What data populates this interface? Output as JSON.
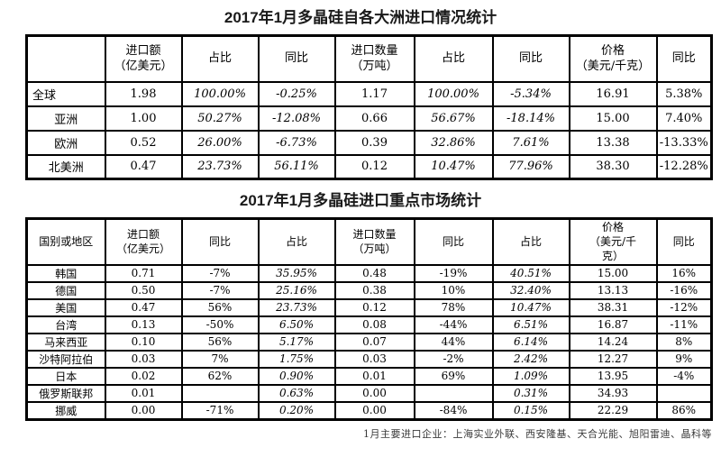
{
  "table1": {
    "title": "2017年1月多晶硅自各大洲进口情况统计",
    "headers": [
      "",
      "进口额\n（亿美元）",
      "占比",
      "同比",
      "进口数量\n（万吨）",
      "占比",
      "同比",
      "价格\n（美元/千克）",
      "同比"
    ],
    "italic_columns": [
      2,
      3,
      5,
      6
    ],
    "rows": [
      [
        "全球",
        "1.98",
        "100.00%",
        "-0.25%",
        "1.17",
        "100.00%",
        "-5.34%",
        "16.91",
        "5.38%"
      ],
      [
        "亚洲",
        "1.00",
        "50.27%",
        "-12.08%",
        "0.66",
        "56.67%",
        "-18.14%",
        "15.00",
        "7.40%"
      ],
      [
        "欧洲",
        "0.52",
        "26.00%",
        "-6.73%",
        "0.39",
        "32.86%",
        "7.61%",
        "13.38",
        "-13.33%"
      ],
      [
        "北美洲",
        "0.47",
        "23.73%",
        "56.11%",
        "0.12",
        "10.47%",
        "77.96%",
        "38.30",
        "-12.28%"
      ]
    ]
  },
  "table2": {
    "title": "2017年1月多晶硅进口重点市场统计",
    "headers": [
      "国别或地区",
      "进口额\n（亿美元）",
      "同比",
      "占比",
      "进口数量\n（万吨）",
      "同比",
      "占比",
      "价格\n（美元/千\n克）",
      "同比"
    ],
    "italic_columns": [
      3,
      6
    ],
    "rows": [
      [
        "韩国",
        "0.71",
        "-7%",
        "35.95%",
        "0.48",
        "-19%",
        "40.51%",
        "15.00",
        "16%"
      ],
      [
        "德国",
        "0.50",
        "-7%",
        "25.16%",
        "0.38",
        "10%",
        "32.40%",
        "13.13",
        "-16%"
      ],
      [
        "美国",
        "0.47",
        "56%",
        "23.73%",
        "0.12",
        "78%",
        "10.47%",
        "38.31",
        "-12%"
      ],
      [
        "台湾",
        "0.13",
        "-50%",
        "6.50%",
        "0.08",
        "-44%",
        "6.51%",
        "16.87",
        "-11%"
      ],
      [
        "马来西亚",
        "0.10",
        "56%",
        "5.17%",
        "0.07",
        "44%",
        "6.14%",
        "14.24",
        "8%"
      ],
      [
        "沙特阿拉伯",
        "0.03",
        "7%",
        "1.75%",
        "0.03",
        "-2%",
        "2.42%",
        "12.27",
        "9%"
      ],
      [
        "日本",
        "0.02",
        "62%",
        "0.90%",
        "0.01",
        "69%",
        "1.09%",
        "13.95",
        "-4%"
      ],
      [
        "俄罗斯联邦",
        "0.01",
        "",
        "0.63%",
        "0.00",
        "",
        "0.31%",
        "34.93",
        ""
      ],
      [
        "挪威",
        "0.00",
        "-71%",
        "0.20%",
        "0.00",
        "-84%",
        "0.15%",
        "22.29",
        "86%"
      ]
    ]
  },
  "footnote": "1月主要进口企业：上海实业外联、西安隆基、天合光能、旭阳雷迪、晶科等"
}
